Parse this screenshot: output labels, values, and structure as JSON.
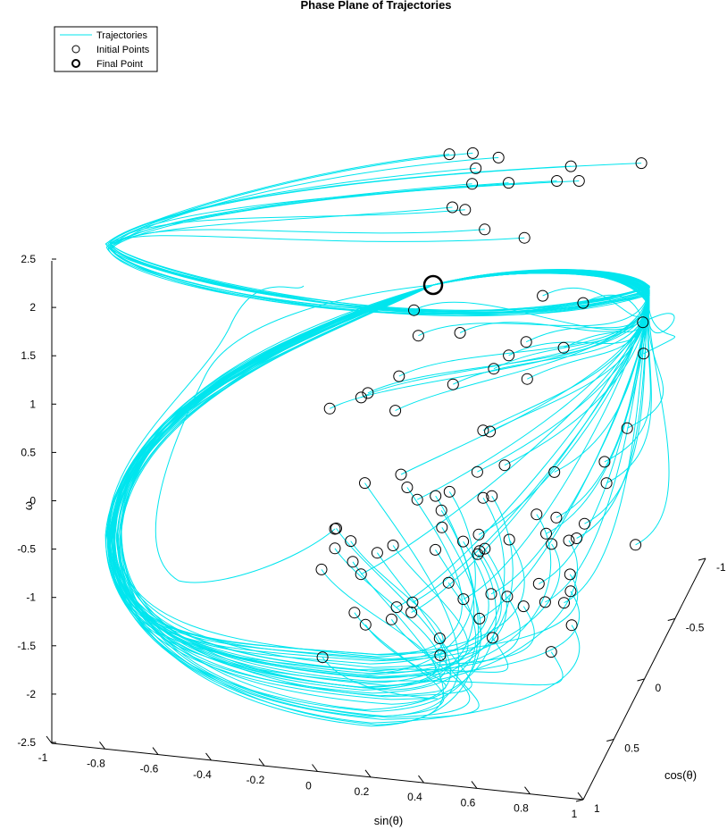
{
  "chart_data": {
    "type": "line",
    "title": "Phase Plane of Trajectories",
    "xlabel": "sin(θ)",
    "ylabel": "cos(θ)",
    "zlabel": "ω",
    "xlim": [
      -1,
      1
    ],
    "ylim": [
      -1,
      1
    ],
    "zlim": [
      -2.5,
      2.5
    ],
    "x_ticks": [
      "-1",
      "-0.8",
      "-0.6",
      "-0.4",
      "-0.2",
      "0",
      "0.2",
      "0.4",
      "0.6",
      "0.8",
      "1"
    ],
    "y_ticks": [
      "-1",
      "-0.5",
      "0",
      "0.5",
      "1"
    ],
    "z_ticks": [
      "-2.5",
      "-2",
      "-1.5",
      "-1",
      "-0.5",
      "0",
      "0.5",
      "1",
      "1.5",
      "2",
      "2.5"
    ],
    "grid": false,
    "legend_position": "top-left",
    "legend": [
      {
        "label": "Trajectories",
        "marker": "line",
        "color": "#00e5ee"
      },
      {
        "label": "Initial Points",
        "marker": "open-circle",
        "color": "#000000"
      },
      {
        "label": "Final Point",
        "marker": "bold-open-circle",
        "color": "#000000"
      }
    ],
    "series": [
      {
        "name": "Trajectories",
        "color": "#00e5ee",
        "note_count": 100
      },
      {
        "name": "Initial Points",
        "color": "#000000"
      },
      {
        "name": "Final Point",
        "color": "#000000",
        "points": [
          [
            0.0,
            -1.0,
            0.0
          ]
        ]
      }
    ]
  }
}
